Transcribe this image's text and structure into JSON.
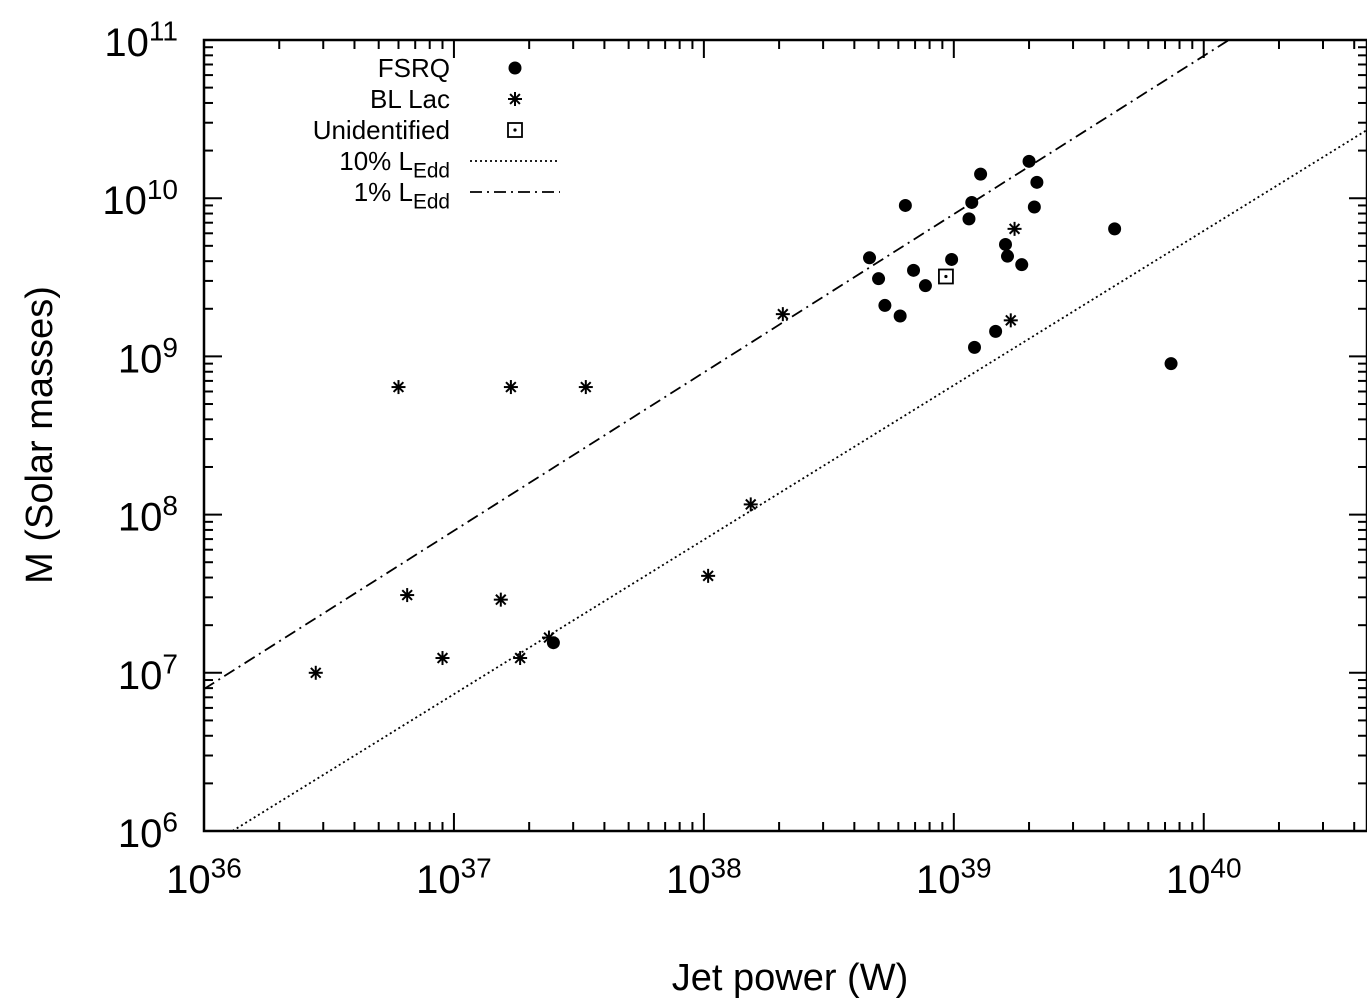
{
  "chart_data": {
    "type": "scatter",
    "xlabel": "Jet power (W)",
    "ylabel": "M (Solar masses)",
    "xscale": "log",
    "yscale": "log",
    "xlim": [
      1e+36,
      4.5e+40
    ],
    "ylim": [
      1000000.0,
      100000000000.0
    ],
    "xticks": [
      {
        "value": 1e+36,
        "label": "10^36"
      },
      {
        "value": 1e+37,
        "label": "10^37"
      },
      {
        "value": 1e+38,
        "label": "10^38"
      },
      {
        "value": 1e+39,
        "label": "10^39"
      },
      {
        "value": 1e+40,
        "label": "10^40"
      }
    ],
    "yticks": [
      {
        "value": 1000000.0,
        "label": "10^6"
      },
      {
        "value": 10000000.0,
        "label": "10^7"
      },
      {
        "value": 100000000.0,
        "label": "10^8"
      },
      {
        "value": 1000000000.0,
        "label": "10^9"
      },
      {
        "value": 10000000000.0,
        "label": "10^10"
      },
      {
        "value": 100000000000.0,
        "label": "10^11"
      }
    ],
    "legend": "upper left",
    "series": [
      {
        "name": "FSRQ",
        "color": "#000000",
        "marker": "circle",
        "x": [
          4.6e+38,
          5e+38,
          5.3e+38,
          6.1e+38,
          6.4e+38,
          6.9e+38,
          7.7e+38,
          9.8e+38,
          1.15e+39,
          1.18e+39,
          1.28e+39,
          1.21e+39,
          1.47e+39,
          1.61e+39,
          1.64e+39,
          1.87e+39,
          2e+39,
          2.15e+39,
          2.1e+39,
          4.4e+39,
          7.4e+39,
          2.5e+37
        ],
        "values": [
          4200000000.0,
          3100000000.0,
          2100000000.0,
          1800000000.0,
          9000000000.0,
          3500000000.0,
          2800000000.0,
          4100000000.0,
          7400000000.0,
          9400000000.0,
          14200000000.0,
          1140000000.0,
          1440000000.0,
          5100000000.0,
          4300000000.0,
          3800000000.0,
          17100000000.0,
          12600000000.0,
          8800000000.0,
          6400000000.0,
          900000000.0,
          15500000.0
        ]
      },
      {
        "name": "BL Lac",
        "color": "#000000",
        "marker": "asterisk",
        "x": [
          2.8e+36,
          6e+36,
          1.69e+37,
          3.37e+37,
          6.5e+36,
          9e+36,
          1.54e+37,
          1.84e+37,
          2.4e+37,
          1.04e+38,
          1.54e+38,
          2.07e+38,
          1.69e+39,
          1.75e+39
        ],
        "values": [
          10000000.0,
          640000000.0,
          640000000.0,
          640000000.0,
          31000000.0,
          12400000.0,
          29000000.0,
          12400000.0,
          16700000.0,
          41000000.0,
          116000000.0,
          1850000000.0,
          1690000000.0,
          6400000000.0
        ]
      },
      {
        "name": "Unidentified",
        "color": "#000000",
        "marker": "square-dot",
        "x": [
          9.3e+38
        ],
        "values": [
          3200000000.0
        ]
      },
      {
        "name": "10% L_Edd",
        "color": "#000000",
        "line": "dotted",
        "x": [
          1.3e+36,
          4.5e+40
        ],
        "values": [
          1000000.0,
          27000000000.0
        ]
      },
      {
        "name": "1% L_Edd",
        "color": "#000000",
        "line": "dash-dot",
        "x": [
          1e+36,
          1.26e+40
        ],
        "values": [
          7900000.0,
          100000000000.0
        ]
      }
    ]
  }
}
